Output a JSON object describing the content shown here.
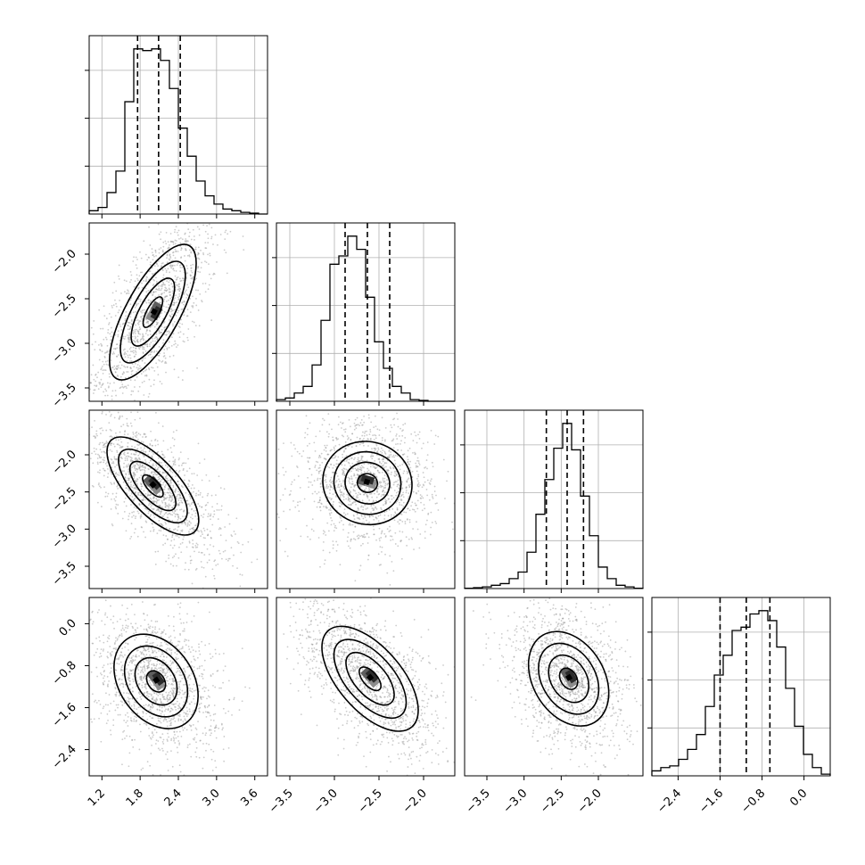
{
  "chart_data": {
    "type": "corner",
    "title": "",
    "grid": true,
    "contour_fills": [
      "#ffffff",
      "#e6e6e6",
      "#b3b3b3"
    ],
    "core_shades": [
      "#8c8c8c",
      "#5e5e5e",
      "#2b2b2b",
      "#000000"
    ],
    "scatter_color": "#9a9a9a",
    "line_color": "#000000",
    "parameters": [
      {
        "index": 0,
        "range": [
          1.0,
          3.8
        ],
        "ticks": [
          1.2,
          1.8,
          2.4,
          3.0,
          3.6
        ],
        "tick_labels": [
          "1.2",
          "1.8",
          "2.4",
          "3.0",
          "3.6"
        ],
        "quantiles": [
          1.76,
          2.09,
          2.43
        ],
        "hist_bins": [
          1.0,
          3.8
        ],
        "hist_counts": [
          0.2,
          0.4,
          1.3,
          2.6,
          6.8,
          10.0,
          9.9,
          10.0,
          9.3,
          7.6,
          5.2,
          3.5,
          2.0,
          1.1,
          0.6,
          0.3,
          0.2,
          0.1,
          0.05,
          0.0
        ]
      },
      {
        "index": 1,
        "range": [
          -3.65,
          -1.65
        ],
        "ticks": [
          -3.5,
          -3.0,
          -2.5,
          -2.0
        ],
        "tick_labels": [
          "−3.5",
          "−3.0",
          "−2.5",
          "−2.0"
        ],
        "quantiles": [
          -2.88,
          -2.63,
          -2.38
        ],
        "hist_bins": [
          -3.65,
          -1.65
        ],
        "hist_counts": [
          0.1,
          0.2,
          0.5,
          0.9,
          2.2,
          4.9,
          8.3,
          8.8,
          10.0,
          9.2,
          6.3,
          3.6,
          2.0,
          0.9,
          0.5,
          0.1,
          0.05,
          0.0,
          0.0,
          0.0
        ]
      },
      {
        "index": 2,
        "range": [
          -3.8,
          -1.4
        ],
        "ticks": [
          -3.5,
          -3.0,
          -2.5,
          -2.0
        ],
        "tick_labels": [
          "−3.5",
          "−3.0",
          "−2.5",
          "−2.0"
        ],
        "quantiles": [
          -2.7,
          -2.42,
          -2.2
        ],
        "hist_bins": [
          -3.8,
          -1.4
        ],
        "hist_counts": [
          0.02,
          0.05,
          0.1,
          0.2,
          0.3,
          0.6,
          1.0,
          2.2,
          4.5,
          6.6,
          8.5,
          10.0,
          8.4,
          5.6,
          3.2,
          1.3,
          0.6,
          0.2,
          0.1,
          0.02
        ]
      },
      {
        "index": 3,
        "range": [
          -2.9,
          0.5
        ],
        "ticks": [
          -2.4,
          -1.6,
          -0.8,
          0.0
        ],
        "tick_labels": [
          "−2.4",
          "−1.6",
          "−0.8",
          "0.0"
        ],
        "quantiles": [
          -1.6,
          -1.1,
          -0.65
        ],
        "hist_bins": [
          -2.9,
          0.5
        ],
        "hist_counts": [
          0.3,
          0.5,
          0.6,
          1.0,
          1.6,
          2.5,
          4.2,
          6.1,
          7.3,
          8.8,
          9.0,
          9.8,
          10.0,
          9.4,
          7.8,
          5.3,
          3.0,
          1.3,
          0.5,
          0.1
        ]
      }
    ],
    "pairs": [
      {
        "x": 0,
        "y": 1,
        "center": [
          2.0,
          -2.65
        ],
        "sigma": [
          0.34,
          0.38
        ],
        "rho": 0.72
      },
      {
        "x": 0,
        "y": 2,
        "center": [
          2.0,
          -2.42
        ],
        "sigma": [
          0.36,
          0.33
        ],
        "rho": -0.7
      },
      {
        "x": 1,
        "y": 2,
        "center": [
          -2.63,
          -2.38
        ],
        "sigma": [
          0.25,
          0.28
        ],
        "rho": -0.05
      },
      {
        "x": 0,
        "y": 3,
        "center": [
          2.05,
          -1.1
        ],
        "sigma": [
          0.33,
          0.45
        ],
        "rho": -0.3
      },
      {
        "x": 1,
        "y": 3,
        "center": [
          -2.6,
          -1.05
        ],
        "sigma": [
          0.27,
          0.5
        ],
        "rho": -0.6
      },
      {
        "x": 2,
        "y": 3,
        "center": [
          -2.4,
          -1.05
        ],
        "sigma": [
          0.27,
          0.45
        ],
        "rho": -0.3
      }
    ]
  }
}
